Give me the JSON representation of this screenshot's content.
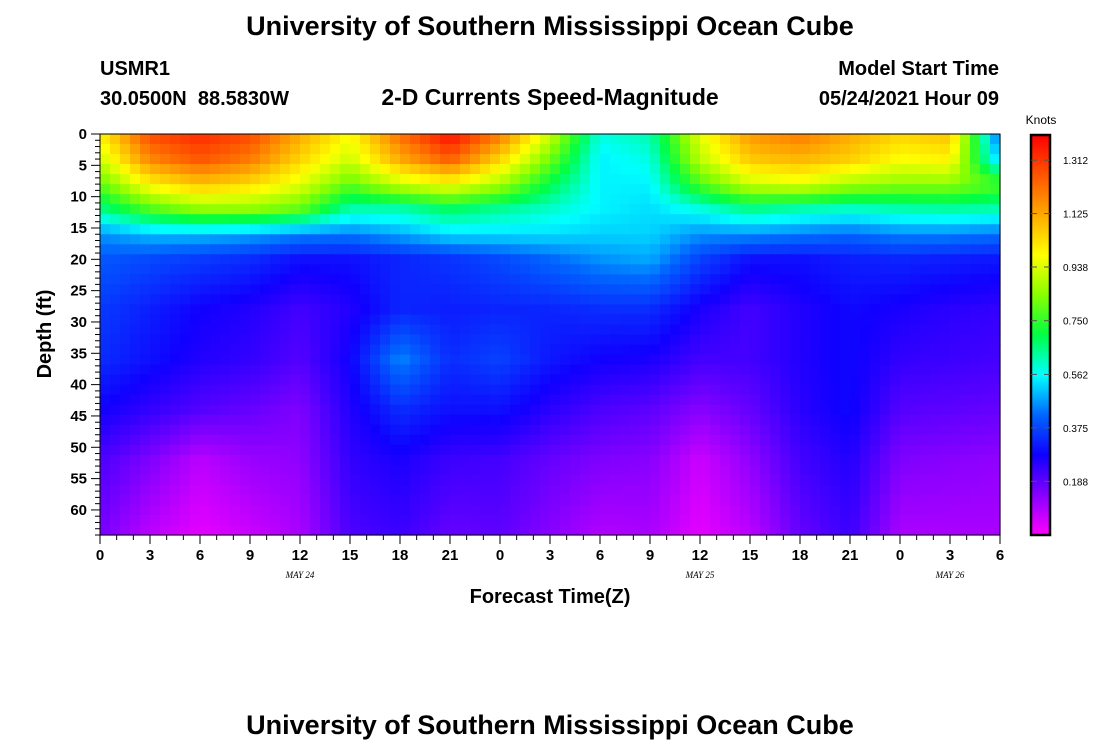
{
  "page": {
    "title_top": "University of Southern Mississippi Ocean Cube",
    "title_bottom": "University of Southern Mississippi Ocean Cube",
    "station_id": "USMR1",
    "station_coords": "30.0500N  88.5830W",
    "plot_name": "2-D Currents Speed-Magnitude",
    "model_start_label": "Model Start Time",
    "model_start_value": "05/24/2021 Hour 09"
  },
  "chart_data": {
    "type": "heatmap",
    "title": "2-D Currents Speed-Magnitude",
    "xlabel": "Forecast Time(Z)",
    "ylabel": "Depth (ft)",
    "colorbar_label": "Knots",
    "x_hours": [
      0,
      3,
      6,
      9,
      12,
      15,
      18,
      21,
      24,
      27,
      30,
      33,
      36,
      39,
      42,
      45,
      48,
      51,
      54
    ],
    "x_tick_labels": [
      "0",
      "3",
      "6",
      "9",
      "12",
      "15",
      "18",
      "21",
      "0",
      "3",
      "6",
      "9",
      "12",
      "15",
      "18",
      "21",
      "0",
      "3",
      "6"
    ],
    "date_labels": [
      {
        "text": "MAY 24",
        "hour": 12
      },
      {
        "text": "MAY 25",
        "hour": 36
      },
      {
        "text": "MAY 26",
        "hour": 51
      }
    ],
    "y_ticks": [
      0,
      5,
      10,
      15,
      20,
      25,
      30,
      35,
      40,
      45,
      50,
      55,
      60
    ],
    "y_tick_labels": [
      "0",
      "5",
      "10",
      "15",
      "20",
      "25",
      "30",
      "35",
      "40",
      "45",
      "50",
      "55",
      "60"
    ],
    "xlim": [
      0,
      54
    ],
    "ylim": [
      0,
      64
    ],
    "y_inverted": true,
    "colorscale_min": 0.0,
    "colorscale_max": 1.4,
    "colorbar_ticks": [
      1.312,
      1.125,
      0.938,
      0.75,
      0.562,
      0.375,
      0.188
    ],
    "colorbar_tick_labels": [
      "1.312",
      "1.125",
      "0.938",
      "0.750",
      "0.562",
      "0.375",
      "0.188"
    ],
    "colorbar_colors": [
      "#ff00ff",
      "#8800ff",
      "#1000ff",
      "#0066ff",
      "#00ffff",
      "#00ff44",
      "#88ff00",
      "#ffff00",
      "#ffaa00",
      "#ff5500",
      "#ff0000"
    ],
    "grid_depths": [
      0,
      4,
      8,
      12,
      16,
      20,
      28,
      36,
      44,
      52,
      64
    ],
    "grid_hours": [
      0,
      3,
      6,
      9,
      12,
      15,
      18,
      21,
      24,
      27,
      30,
      33,
      36,
      39,
      42,
      45,
      48,
      51,
      54
    ],
    "grid_values": [
      [
        1.0,
        1.28,
        1.33,
        1.28,
        1.12,
        0.98,
        1.22,
        1.38,
        1.2,
        0.92,
        0.58,
        0.62,
        0.95,
        1.15,
        1.2,
        1.12,
        1.05,
        1.08,
        0.4
      ],
      [
        0.92,
        1.18,
        1.26,
        1.2,
        1.05,
        0.92,
        1.12,
        1.25,
        1.05,
        0.82,
        0.55,
        0.58,
        0.9,
        1.07,
        1.1,
        1.06,
        0.98,
        1.0,
        0.5
      ],
      [
        0.8,
        1.0,
        1.08,
        1.04,
        0.95,
        0.8,
        0.92,
        0.98,
        0.88,
        0.7,
        0.55,
        0.55,
        0.78,
        0.92,
        0.95,
        0.88,
        0.85,
        0.85,
        0.78
      ],
      [
        0.65,
        0.78,
        0.85,
        0.85,
        0.8,
        0.62,
        0.62,
        0.68,
        0.64,
        0.6,
        0.55,
        0.53,
        0.58,
        0.65,
        0.62,
        0.6,
        0.62,
        0.63,
        0.62
      ],
      [
        0.46,
        0.5,
        0.5,
        0.48,
        0.45,
        0.44,
        0.48,
        0.53,
        0.53,
        0.53,
        0.52,
        0.52,
        0.46,
        0.46,
        0.44,
        0.42,
        0.45,
        0.45,
        0.43
      ],
      [
        0.4,
        0.38,
        0.36,
        0.34,
        0.3,
        0.3,
        0.33,
        0.35,
        0.38,
        0.42,
        0.46,
        0.48,
        0.37,
        0.3,
        0.3,
        0.32,
        0.33,
        0.32,
        0.31
      ],
      [
        0.36,
        0.32,
        0.28,
        0.26,
        0.22,
        0.26,
        0.33,
        0.32,
        0.33,
        0.33,
        0.34,
        0.34,
        0.27,
        0.22,
        0.26,
        0.29,
        0.27,
        0.25,
        0.24
      ],
      [
        0.34,
        0.3,
        0.26,
        0.24,
        0.2,
        0.28,
        0.45,
        0.34,
        0.37,
        0.31,
        0.28,
        0.27,
        0.22,
        0.22,
        0.26,
        0.29,
        0.24,
        0.23,
        0.22
      ],
      [
        0.28,
        0.24,
        0.2,
        0.18,
        0.15,
        0.26,
        0.34,
        0.3,
        0.3,
        0.25,
        0.21,
        0.19,
        0.14,
        0.18,
        0.25,
        0.29,
        0.2,
        0.19,
        0.18
      ],
      [
        0.21,
        0.15,
        0.08,
        0.12,
        0.13,
        0.24,
        0.27,
        0.23,
        0.22,
        0.18,
        0.15,
        0.14,
        0.06,
        0.13,
        0.22,
        0.26,
        0.15,
        0.14,
        0.13
      ],
      [
        0.16,
        0.08,
        0.03,
        0.06,
        0.1,
        0.21,
        0.23,
        0.18,
        0.19,
        0.14,
        0.09,
        0.1,
        0.03,
        0.08,
        0.18,
        0.23,
        0.1,
        0.1,
        0.1
      ]
    ]
  }
}
